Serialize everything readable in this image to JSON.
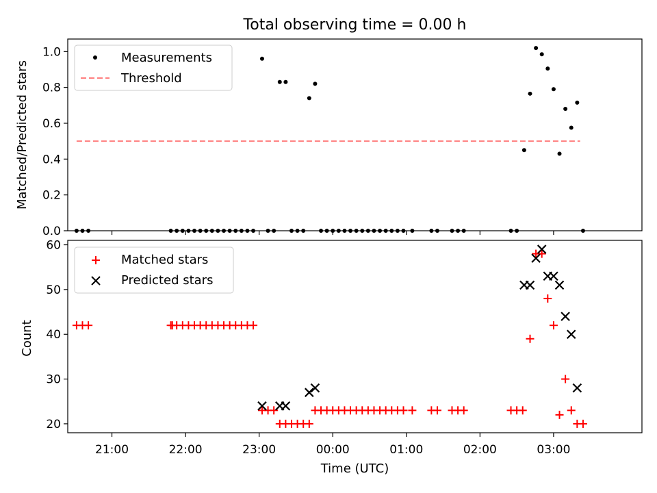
{
  "title": "Total observing time = 0.00 h",
  "chart_data": [
    {
      "type": "scatter",
      "ylabel": "Matched/Predicted stars",
      "xlim": [
        20.4,
        28.2
      ],
      "ylim": [
        0,
        1.07
      ],
      "yticks": [
        0.0,
        0.2,
        0.4,
        0.6,
        0.8,
        1.0
      ],
      "ytick_labels": [
        "0.0",
        "0.2",
        "0.4",
        "0.6",
        "0.8",
        "1.0"
      ],
      "legend_position": "top-left",
      "series": [
        {
          "name": "Measurements",
          "marker": "dot",
          "color": "#000000",
          "points": [
            [
              20.52,
              0
            ],
            [
              20.6,
              0
            ],
            [
              20.68,
              0
            ],
            [
              21.8,
              0
            ],
            [
              21.88,
              0
            ],
            [
              21.96,
              0
            ],
            [
              22.04,
              0
            ],
            [
              22.12,
              0
            ],
            [
              22.2,
              0
            ],
            [
              22.28,
              0
            ],
            [
              22.36,
              0
            ],
            [
              22.44,
              0
            ],
            [
              22.52,
              0
            ],
            [
              22.6,
              0
            ],
            [
              22.68,
              0
            ],
            [
              22.76,
              0
            ],
            [
              22.84,
              0
            ],
            [
              22.92,
              0
            ],
            [
              23.04,
              0.96
            ],
            [
              23.12,
              0
            ],
            [
              23.2,
              0
            ],
            [
              23.28,
              0.83
            ],
            [
              23.36,
              0.83
            ],
            [
              23.44,
              0
            ],
            [
              23.52,
              0
            ],
            [
              23.6,
              0
            ],
            [
              23.68,
              0.74
            ],
            [
              23.76,
              0.82
            ],
            [
              23.84,
              0
            ],
            [
              23.92,
              0
            ],
            [
              24.0,
              0
            ],
            [
              24.08,
              0
            ],
            [
              24.16,
              0
            ],
            [
              24.24,
              0
            ],
            [
              24.32,
              0
            ],
            [
              24.4,
              0
            ],
            [
              24.48,
              0
            ],
            [
              24.56,
              0
            ],
            [
              24.64,
              0
            ],
            [
              24.72,
              0
            ],
            [
              24.8,
              0
            ],
            [
              24.88,
              0
            ],
            [
              24.96,
              0
            ],
            [
              25.08,
              0
            ],
            [
              25.34,
              0
            ],
            [
              25.42,
              0
            ],
            [
              25.62,
              0
            ],
            [
              25.7,
              0
            ],
            [
              25.78,
              0
            ],
            [
              26.42,
              0
            ],
            [
              26.5,
              0
            ],
            [
              26.6,
              0.45
            ],
            [
              26.68,
              0.765
            ],
            [
              26.76,
              1.02
            ],
            [
              26.84,
              0.985
            ],
            [
              26.92,
              0.905
            ],
            [
              27.0,
              0.79
            ],
            [
              27.08,
              0.43
            ],
            [
              27.16,
              0.68
            ],
            [
              27.24,
              0.575
            ],
            [
              27.32,
              0.715
            ],
            [
              27.4,
              0
            ]
          ]
        },
        {
          "name": "Threshold",
          "style": "dashed",
          "color": "#ff7f7f",
          "x": [
            20.52,
            27.36
          ],
          "y": [
            0.5,
            0.5
          ]
        }
      ]
    },
    {
      "type": "scatter",
      "xlabel": "Time (UTC)",
      "ylabel": "Count",
      "xlim": [
        20.4,
        28.2
      ],
      "ylim": [
        18,
        61
      ],
      "yticks": [
        20,
        30,
        40,
        50,
        60
      ],
      "ytick_labels": [
        "20",
        "30",
        "40",
        "50",
        "60"
      ],
      "xticks": [
        21,
        22,
        23,
        24,
        25,
        26,
        27
      ],
      "xtick_labels": [
        "21:00",
        "22:00",
        "23:00",
        "00:00",
        "01:00",
        "02:00",
        "03:00"
      ],
      "legend_position": "top-left",
      "series": [
        {
          "name": "Matched stars",
          "marker": "plus",
          "color": "#ff0000",
          "points": [
            [
              20.52,
              42
            ],
            [
              20.6,
              42
            ],
            [
              20.68,
              42
            ],
            [
              21.8,
              42
            ],
            [
              21.82,
              42
            ],
            [
              21.88,
              42
            ],
            [
              21.96,
              42
            ],
            [
              22.04,
              42
            ],
            [
              22.12,
              42
            ],
            [
              22.2,
              42
            ],
            [
              22.28,
              42
            ],
            [
              22.36,
              42
            ],
            [
              22.44,
              42
            ],
            [
              22.52,
              42
            ],
            [
              22.6,
              42
            ],
            [
              22.68,
              42
            ],
            [
              22.76,
              42
            ],
            [
              22.84,
              42
            ],
            [
              22.92,
              42
            ],
            [
              23.04,
              23
            ],
            [
              23.12,
              23
            ],
            [
              23.2,
              23
            ],
            [
              23.28,
              20
            ],
            [
              23.36,
              20
            ],
            [
              23.44,
              20
            ],
            [
              23.52,
              20
            ],
            [
              23.6,
              20
            ],
            [
              23.68,
              20
            ],
            [
              23.76,
              23
            ],
            [
              23.84,
              23
            ],
            [
              23.92,
              23
            ],
            [
              24.0,
              23
            ],
            [
              24.08,
              23
            ],
            [
              24.16,
              23
            ],
            [
              24.24,
              23
            ],
            [
              24.32,
              23
            ],
            [
              24.4,
              23
            ],
            [
              24.48,
              23
            ],
            [
              24.56,
              23
            ],
            [
              24.64,
              23
            ],
            [
              24.72,
              23
            ],
            [
              24.8,
              23
            ],
            [
              24.88,
              23
            ],
            [
              24.96,
              23
            ],
            [
              25.08,
              23
            ],
            [
              25.34,
              23
            ],
            [
              25.42,
              23
            ],
            [
              25.62,
              23
            ],
            [
              25.7,
              23
            ],
            [
              25.78,
              23
            ],
            [
              26.42,
              23
            ],
            [
              26.5,
              23
            ],
            [
              26.58,
              23
            ],
            [
              26.68,
              39
            ],
            [
              26.76,
              58
            ],
            [
              26.84,
              58
            ],
            [
              26.92,
              48
            ],
            [
              27.0,
              42
            ],
            [
              27.08,
              22
            ],
            [
              27.16,
              30
            ],
            [
              27.24,
              23
            ],
            [
              27.32,
              20
            ],
            [
              27.4,
              20
            ]
          ]
        },
        {
          "name": "Predicted stars",
          "marker": "x",
          "color": "#000000",
          "points": [
            [
              23.04,
              24
            ],
            [
              23.28,
              24
            ],
            [
              23.36,
              24
            ],
            [
              23.68,
              27
            ],
            [
              23.76,
              28
            ],
            [
              26.6,
              51
            ],
            [
              26.68,
              51
            ],
            [
              26.76,
              57
            ],
            [
              26.84,
              59
            ],
            [
              26.92,
              53
            ],
            [
              27.0,
              53
            ],
            [
              27.08,
              51
            ],
            [
              27.16,
              44
            ],
            [
              27.24,
              40
            ],
            [
              27.32,
              28
            ]
          ]
        }
      ]
    }
  ]
}
